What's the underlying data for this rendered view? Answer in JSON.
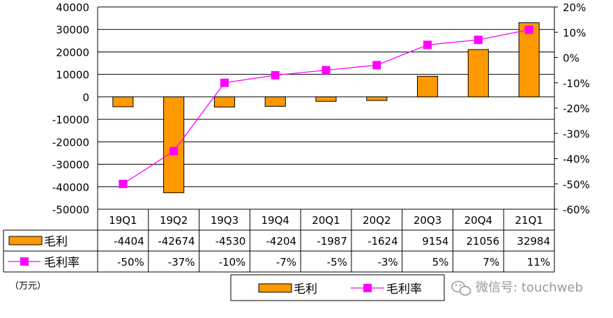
{
  "chart_data": {
    "type": "bar",
    "categories": [
      "19Q1",
      "19Q2",
      "19Q3",
      "19Q4",
      "20Q1",
      "20Q2",
      "20Q3",
      "20Q4",
      "21Q1"
    ],
    "series": [
      {
        "name": "毛利",
        "kind": "bar",
        "axis": "left",
        "color": "#FF9900",
        "values": [
          -4404,
          -42674,
          -4530,
          -4204,
          -1987,
          -1624,
          9154,
          21056,
          32984
        ],
        "table_labels": [
          "-4404",
          "-42674",
          "-4530",
          "-4204",
          "-1987",
          "-1624",
          "9154",
          "21056",
          "32984"
        ]
      },
      {
        "name": "毛利率",
        "kind": "line",
        "axis": "right",
        "color": "#FF00FF",
        "values": [
          -50,
          -37,
          -10,
          -7,
          -5,
          -3,
          5,
          7,
          11
        ],
        "table_labels": [
          "-50%",
          "-37%",
          "-10%",
          "-7%",
          "-5%",
          "-3%",
          "5%",
          "7%",
          "11%"
        ]
      }
    ],
    "ylim_left": [
      -50000,
      40000
    ],
    "yticks_left": [
      "40000",
      "30000",
      "20000",
      "10000",
      "0",
      "-10000",
      "-20000",
      "-30000",
      "-40000",
      "-50000"
    ],
    "ylim_right": [
      -60,
      20
    ],
    "yticks_right": [
      "20%",
      "10%",
      "0%",
      "-10%",
      "-20%",
      "-30%",
      "-40%",
      "-50%",
      "-60%"
    ],
    "grid": true,
    "data_table": true,
    "legend_position": "bottom"
  },
  "unit_label": "（万元）",
  "watermark": "微信号: touchweb"
}
